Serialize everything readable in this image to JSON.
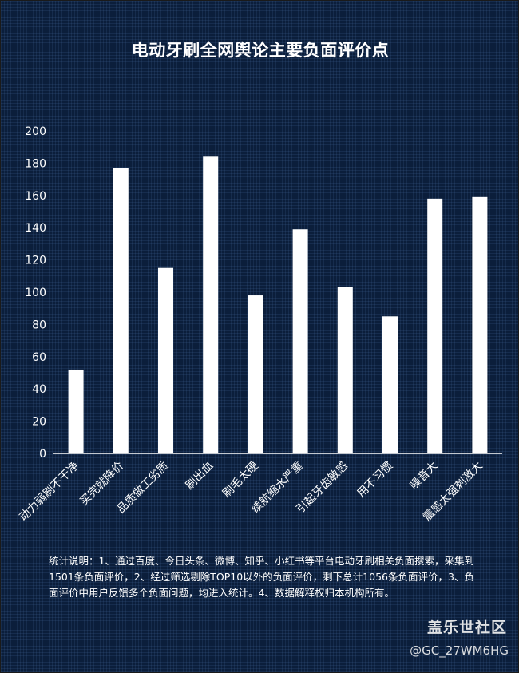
{
  "chart_data": {
    "type": "bar",
    "title": "电动牙刷全网舆论主要负面评价点",
    "categories": [
      "动力弱刷不干净",
      "买完就降价",
      "品质做工劣质",
      "刷出血",
      "刷毛太硬",
      "续航缩水严重",
      "引起牙齿敏感",
      "用不习惯",
      "噪音大",
      "震感太强刺激大"
    ],
    "values": [
      52,
      177,
      115,
      184,
      98,
      139,
      103,
      85,
      158,
      159
    ],
    "ylim": [
      0,
      200
    ],
    "yticks": [
      0,
      20,
      40,
      60,
      80,
      100,
      120,
      140,
      160,
      180,
      200
    ],
    "grid": false,
    "legend": "none",
    "bar_color": "#ffffff",
    "background_color": "#0b1e3b",
    "text_color": "#ffffff"
  },
  "note": "统计说明：1、通过百度、今日头条、微博、知乎、小红书等平台电动牙刷相关负面搜索，采集到1501条负面评价，2、经过筛选剔除TOP10以外的负面评价，剩下总计1056条负面评价，3、负面评价中用户反馈多个负面问题，均进入统计。4、数据解释权归本机构所有。",
  "brand": "盖乐世社区",
  "watermark": "@GC_27WM6HG"
}
